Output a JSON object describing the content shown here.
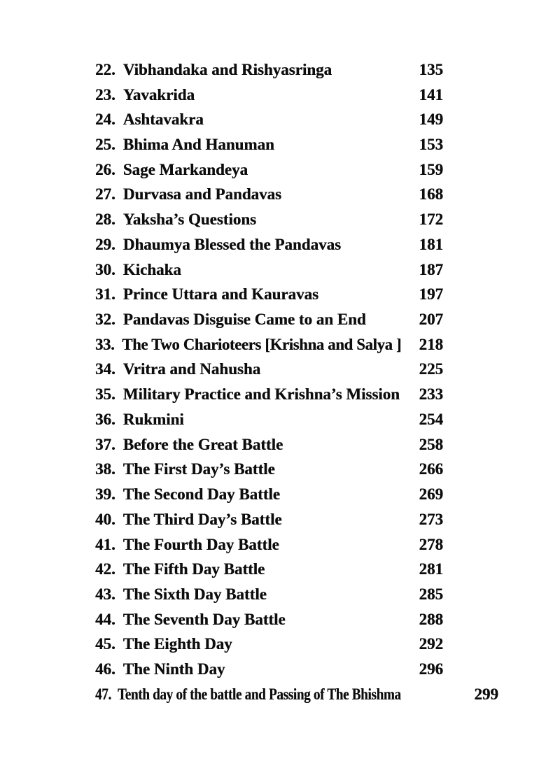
{
  "page": {
    "background_color": "#ffffff",
    "text_color": "#0d0d0d"
  },
  "toc": {
    "entries": [
      {
        "number_label": "22.",
        "title": "Vibhandaka and Rishyasringa",
        "page": "135"
      },
      {
        "number_label": "23.",
        "title": "Yavakrida",
        "page": "141"
      },
      {
        "number_label": "24.",
        "title": "Ashtavakra",
        "page": "149"
      },
      {
        "number_label": "25.",
        "title": "Bhima And Hanuman",
        "page": "153"
      },
      {
        "number_label": "26.",
        "title": "Sage Markandeya",
        "page": "159"
      },
      {
        "number_label": "27.",
        "title": "Durvasa and Pandavas",
        "page": "168"
      },
      {
        "number_label": "28.",
        "title": "Yaksha’s Questions",
        "page": "172"
      },
      {
        "number_label": "29.",
        "title": "Dhaumya Blessed the Pandavas",
        "page": "181"
      },
      {
        "number_label": "30.",
        "title": "Kichaka",
        "page": "187"
      },
      {
        "number_label": "31.",
        "title": "Prince Uttara and Kauravas",
        "page": "197"
      },
      {
        "number_label": "32.",
        "title": "Pandavas Disguise Came to an End",
        "page": "207"
      },
      {
        "number_label": "33.",
        "title": "The Two Charioteers [Krishna and Salya ]",
        "page": "218"
      },
      {
        "number_label": "34.",
        "title": "Vritra and Nahusha",
        "page": "225"
      },
      {
        "number_label": "35.",
        "title": "Military Practice and Krishna’s Mission",
        "page": "233"
      },
      {
        "number_label": "36.",
        "title": "Rukmini",
        "page": "254"
      },
      {
        "number_label": "37.",
        "title": "Before the Great Battle",
        "page": "258"
      },
      {
        "number_label": "38.",
        "title": "The First Day’s Battle",
        "page": "266"
      },
      {
        "number_label": "39.",
        "title": "The Second Day Battle",
        "page": "269"
      },
      {
        "number_label": "40.",
        "title": "The Third Day’s Battle",
        "page": "273"
      },
      {
        "number_label": "41.",
        "title": "The Fourth Day Battle",
        "page": "278"
      },
      {
        "number_label": "42.",
        "title": "The Fifth Day Battle",
        "page": "281"
      },
      {
        "number_label": "43.",
        "title": "The Sixth Day Battle",
        "page": "285"
      },
      {
        "number_label": "44.",
        "title": "The Seventh Day Battle",
        "page": "288"
      },
      {
        "number_label": "45.",
        "title": "The Eighth Day",
        "page": "292"
      },
      {
        "number_label": "46.",
        "title": "The Ninth Day",
        "page": "296"
      },
      {
        "number_label": "47.",
        "title": "Tenth day of the battle and Passing of The Bhishma",
        "page": "299"
      }
    ]
  }
}
